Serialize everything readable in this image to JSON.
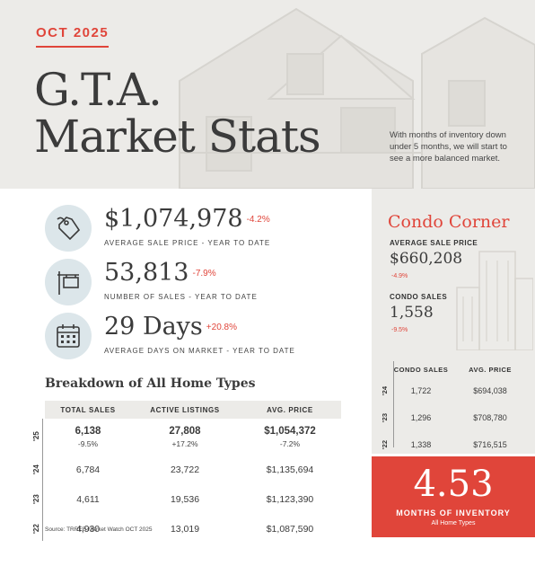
{
  "header": {
    "date_badge": "OCT 2025",
    "title_line1": "G.T.A.",
    "title_line2": "Market Stats",
    "note": "With months of inventory down under 5 months, we will start to see a more balanced market."
  },
  "kpis": [
    {
      "icon": "price-tag-icon",
      "value": "$1,074,978",
      "change": "-4.2%",
      "label": "AVERAGE SALE PRICE - YEAR TO DATE"
    },
    {
      "icon": "for-sale-sign-icon",
      "value": "53,813",
      "change": "-7.9%",
      "label": "NUMBER OF SALES - YEAR TO DATE"
    },
    {
      "icon": "calendar-icon",
      "value": "29 Days",
      "change": "+20.8%",
      "label": "AVERAGE DAYS ON MARKET - YEAR TO DATE"
    }
  ],
  "breakdown": {
    "title": "Breakdown of All Home Types",
    "headers": [
      "TOTAL SALES",
      "ACTIVE LISTINGS",
      "AVG. PRICE"
    ],
    "rows": [
      {
        "year": "'25",
        "sales": "6,138",
        "sales_chg": "-9.5%",
        "listings": "27,808",
        "listings_chg": "+17.2%",
        "price": "$1,054,372",
        "price_chg": "-7.2%"
      },
      {
        "year": "'24",
        "sales": "6,784",
        "listings": "23,722",
        "price": "$1,135,694"
      },
      {
        "year": "'23",
        "sales": "4,611",
        "listings": "19,536",
        "price": "$1,123,390"
      },
      {
        "year": "'22",
        "sales": "4,930",
        "listings": "13,019",
        "price": "$1,087,590"
      }
    ],
    "source": "Source: TRREB Market Watch OCT 2025"
  },
  "condo": {
    "title": "Condo Corner",
    "avg_label": "AVERAGE SALE PRICE",
    "avg_value": "$660,208",
    "avg_chg": "-4.9%",
    "sales_label": "CONDO SALES",
    "sales_value": "1,558",
    "sales_chg": "-9.5%",
    "headers": [
      "CONDO SALES",
      "AVG. PRICE"
    ],
    "rows": [
      {
        "year": "'24",
        "sales": "1,722",
        "price": "$694,038"
      },
      {
        "year": "'23",
        "sales": "1,296",
        "price": "$708,780"
      },
      {
        "year": "'22",
        "sales": "1,338",
        "price": "$716,515"
      }
    ]
  },
  "inventory": {
    "value": "4.53",
    "label": "MONTHS OF INVENTORY",
    "sub": "All Home Types"
  },
  "colors": {
    "accent": "#e0453a",
    "panel": "#ecebe8",
    "icon_bg": "#dce6ea"
  }
}
